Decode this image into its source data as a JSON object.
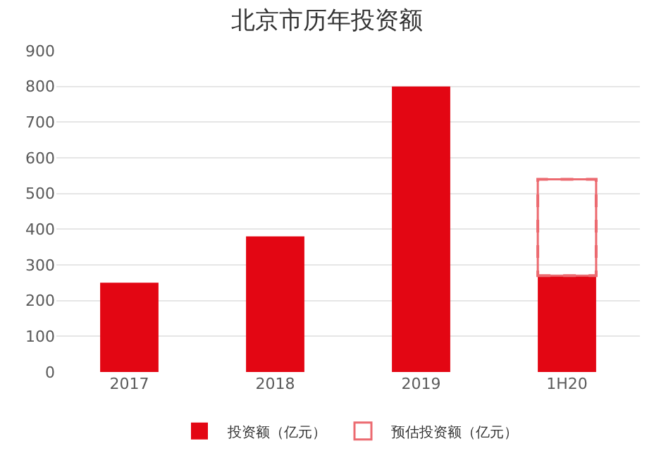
{
  "chart_data": {
    "type": "bar",
    "title": "北京市历年投资额",
    "categories": [
      "2017",
      "2018",
      "2019",
      "1H20"
    ],
    "series": [
      {
        "name": "投资额（亿元）",
        "color": "#e30613",
        "values": [
          250,
          380,
          800,
          270
        ]
      },
      {
        "name": "预估投资额（亿元）",
        "color": "#ec6a70",
        "values": [
          null,
          null,
          null,
          270
        ],
        "line_style": "dashed"
      }
    ],
    "stacked": true,
    "ylim": [
      0,
      900
    ],
    "yticks": [
      0,
      100,
      200,
      300,
      400,
      500,
      600,
      700,
      800,
      900
    ],
    "grid": "y",
    "legend": "bottom"
  }
}
